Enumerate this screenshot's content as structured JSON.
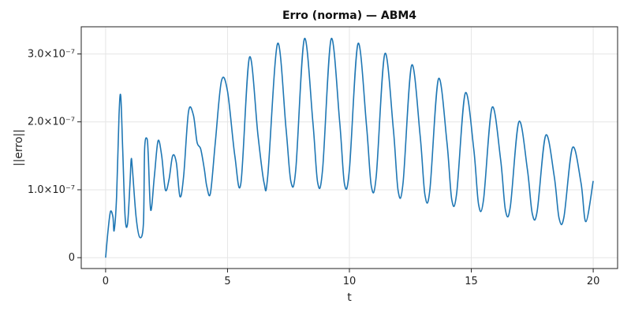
{
  "chart_data": {
    "type": "line",
    "title": "Erro (norma) — ABM4",
    "xlabel": "t",
    "ylabel": "||erro||",
    "xlim": [
      -1,
      21
    ],
    "ylim": [
      -1.6e-08,
      3.4e-07
    ],
    "grid": true,
    "xticks": [
      {
        "value": 0,
        "label": "0"
      },
      {
        "value": 5,
        "label": "5"
      },
      {
        "value": 10,
        "label": "10"
      },
      {
        "value": 15,
        "label": "15"
      },
      {
        "value": 20,
        "label": "20"
      }
    ],
    "yticks": [
      {
        "value": 0,
        "label": "0"
      },
      {
        "value": 1e-07,
        "label": "1.0×10⁻⁷"
      },
      {
        "value": 2e-07,
        "label": "2.0×10⁻⁷"
      },
      {
        "value": 3e-07,
        "label": "3.0×10⁻⁷"
      }
    ],
    "color": "#1f77b4",
    "series": [
      {
        "x": [
          0,
          0.1,
          0.2,
          0.3,
          0.35,
          0.45,
          0.55,
          0.62,
          0.7,
          0.8,
          0.9,
          1.0,
          1.05,
          1.1,
          1.25,
          1.4,
          1.55,
          1.6,
          1.7,
          1.75,
          1.85,
          2.0,
          2.15,
          2.3,
          2.45,
          2.6,
          2.75,
          2.9,
          3.05,
          3.2,
          3.4,
          3.6,
          3.75,
          3.9,
          4.05,
          4.15,
          4.3,
          4.5,
          4.75,
          5.0,
          5.3,
          5.55,
          5.9,
          6.25,
          6.5,
          6.65,
          7.05,
          7.4,
          7.6,
          7.8,
          8.15,
          8.5,
          8.7,
          8.9,
          9.25,
          9.6,
          9.8,
          10.0,
          10.35,
          10.7,
          10.9,
          11.1,
          11.45,
          11.8,
          12.0,
          12.2,
          12.55,
          12.9,
          13.1,
          13.3,
          13.65,
          14.0,
          14.2,
          14.4,
          14.75,
          15.1,
          15.3,
          15.5,
          15.85,
          16.2,
          16.4,
          16.6,
          16.95,
          17.3,
          17.5,
          17.7,
          18.05,
          18.4,
          18.6,
          18.8,
          19.15,
          19.5,
          19.7,
          20.0
        ],
        "y": [
          0,
          4e-08,
          6.8e-08,
          6e-08,
          4e-08,
          9e-08,
          2.1e-07,
          2.38e-07,
          1.6e-07,
          6e-08,
          5e-08,
          1.1e-07,
          1.45e-07,
          1.3e-07,
          6e-08,
          3e-08,
          5e-08,
          1.6e-07,
          1.75e-07,
          1.5e-07,
          7e-08,
          1.2e-07,
          1.72e-07,
          1.5e-07,
          1e-07,
          1.15e-07,
          1.5e-07,
          1.4e-07,
          9e-08,
          1.2e-07,
          2.15e-07,
          2.1e-07,
          1.7e-07,
          1.6e-07,
          1.3e-07,
          1.05e-07,
          9.5e-08,
          1.7e-07,
          2.6e-07,
          2.45e-07,
          1.5e-07,
          1.1e-07,
          2.95e-07,
          1.8e-07,
          1.1e-07,
          1.2e-07,
          3.15e-07,
          1.9e-07,
          1.12e-07,
          1.3e-07,
          3.22e-07,
          2e-07,
          1.1e-07,
          1.3e-07,
          3.22e-07,
          2e-07,
          1.08e-07,
          1.3e-07,
          3.15e-07,
          1.95e-07,
          1.05e-07,
          1.2e-07,
          3e-07,
          1.9e-07,
          9.8e-08,
          1.1e-07,
          2.83e-07,
          1.8e-07,
          9.2e-08,
          1e-07,
          2.63e-07,
          1.7e-07,
          8.5e-08,
          9.5e-08,
          2.42e-07,
          1.6e-07,
          7.8e-08,
          8.5e-08,
          2.21e-07,
          1.45e-07,
          7e-08,
          7.5e-08,
          2e-07,
          1.3e-07,
          6.5e-08,
          6.8e-08,
          1.8e-07,
          1.2e-07,
          5.8e-08,
          6e-08,
          1.62e-07,
          1.1e-07,
          5.3e-08,
          1.13e-07
        ]
      }
    ]
  }
}
